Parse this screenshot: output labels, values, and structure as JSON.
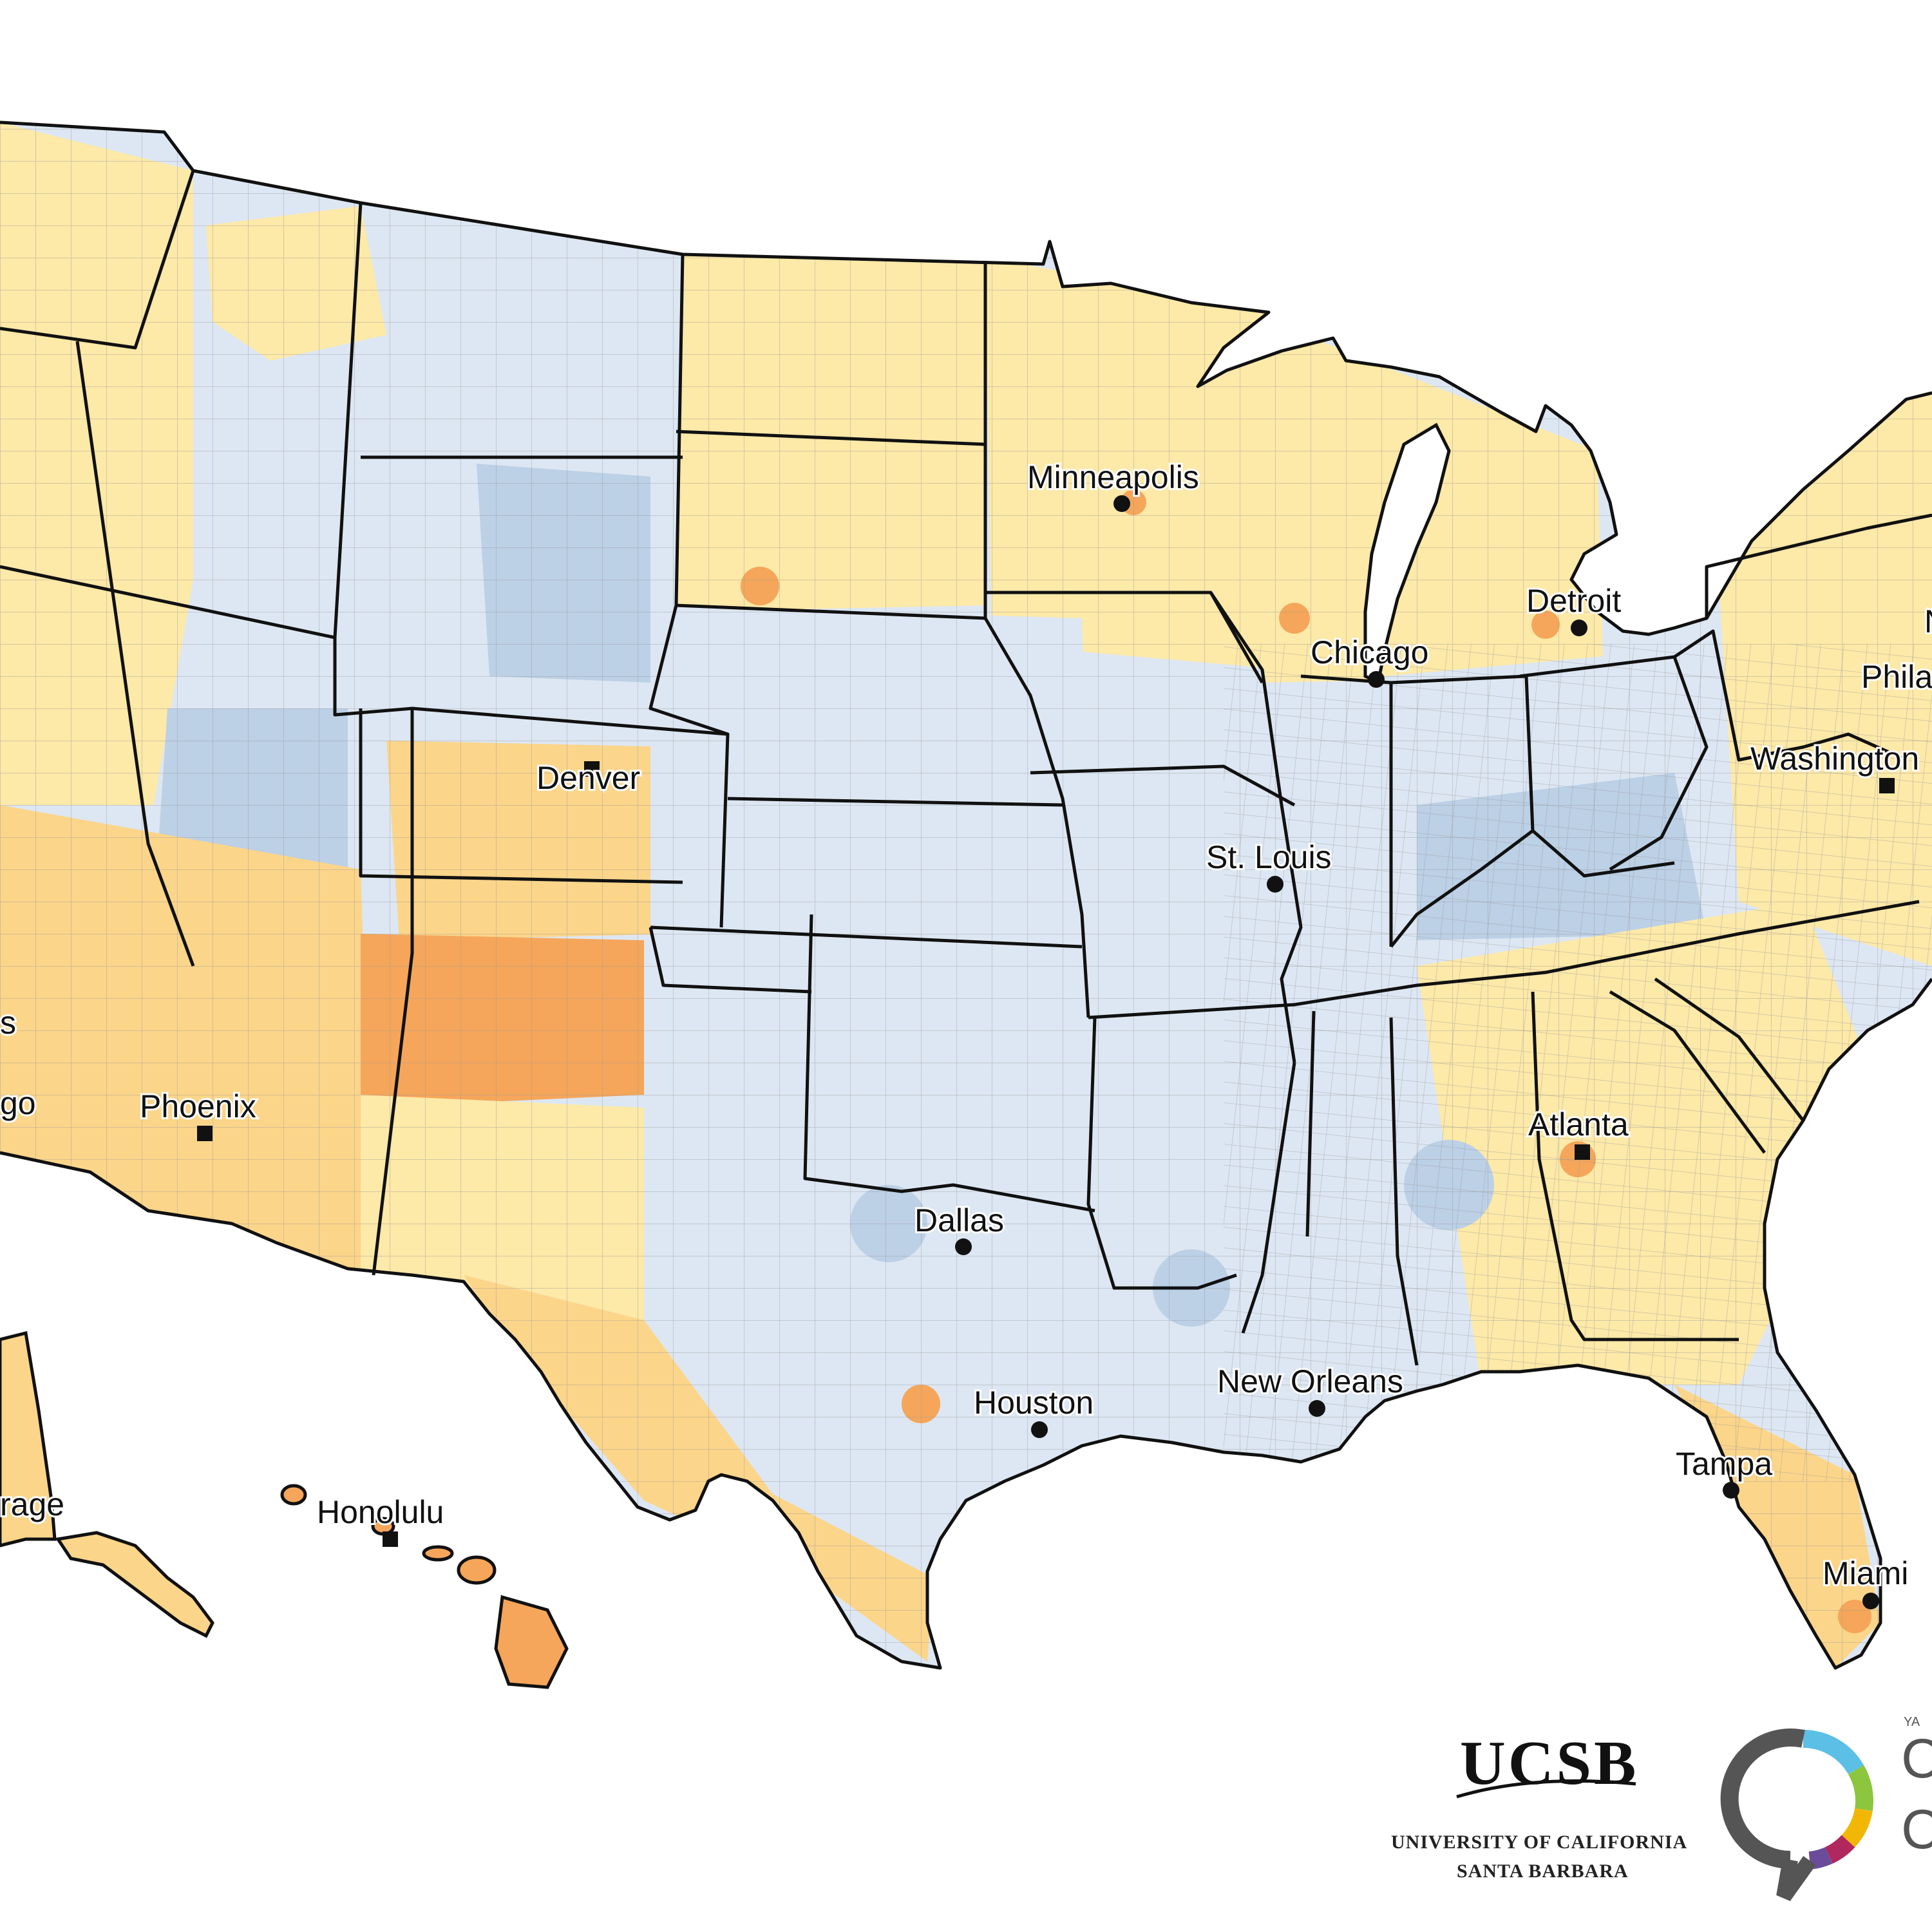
{
  "palette": {
    "much_below": "#bcd0e6",
    "below": "#dde7f3",
    "near": "#fde9a8",
    "above": "#fbd58a",
    "much_above": "#f5a65a",
    "outline": "#111111"
  },
  "cities": [
    {
      "name": "Minneapolis",
      "marker": "circle"
    },
    {
      "name": "Detroit",
      "marker": "circle"
    },
    {
      "name": "Chicago",
      "marker": "circle"
    },
    {
      "name": "Philadelphia",
      "display": "Phila",
      "marker": "circle"
    },
    {
      "name": "Washington",
      "display": "Washington",
      "marker": "square"
    },
    {
      "name": "Denver",
      "marker": "square"
    },
    {
      "name": "St. Louis",
      "marker": "circle"
    },
    {
      "name": "Phoenix",
      "marker": "square"
    },
    {
      "name": "Atlanta",
      "marker": "square"
    },
    {
      "name": "Dallas",
      "marker": "circle"
    },
    {
      "name": "Houston",
      "marker": "circle"
    },
    {
      "name": "New Orleans",
      "marker": "circle"
    },
    {
      "name": "Honolulu",
      "marker": "square"
    },
    {
      "name": "Tampa",
      "marker": "circle"
    },
    {
      "name": "Miami",
      "marker": "circle"
    },
    {
      "name": "Anchorage",
      "display": "rage",
      "marker": "circle"
    },
    {
      "name": "Los Angeles",
      "display": "s",
      "marker": "circle"
    },
    {
      "name": "San Diego",
      "display": "go",
      "marker": "circle"
    },
    {
      "name": "New York",
      "display": "N",
      "marker": "circle"
    }
  ],
  "logos": {
    "ucsb": {
      "wordmark": "UCSB",
      "line1": "UNIVERSITY OF CALIFORNIA",
      "line2": "SANTA BARBARA"
    },
    "yale": {
      "ring_colors": [
        "#5bbfe6",
        "#8cc63f",
        "#f2b705",
        "#b0285e",
        "#6b4c9a",
        "#555555"
      ],
      "fragment_top": "YA",
      "fragment_mid": "C",
      "fragment_bot": "C"
    }
  }
}
